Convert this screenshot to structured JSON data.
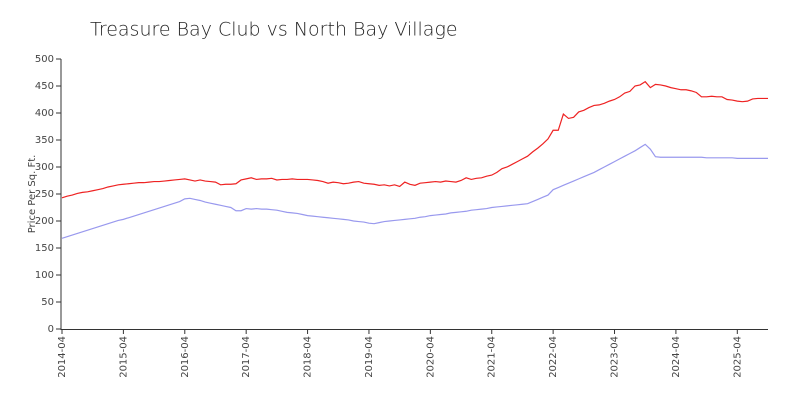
{
  "chart_data": {
    "type": "line",
    "title": "Treasure Bay Club vs North Bay Village",
    "y_label": "Price Per Sq. Ft.",
    "x": [
      "2014-04",
      "2014-05",
      "2014-06",
      "2014-07",
      "2014-08",
      "2014-09",
      "2014-10",
      "2014-11",
      "2014-12",
      "2015-01",
      "2015-02",
      "2015-03",
      "2015-04",
      "2015-05",
      "2015-06",
      "2015-07",
      "2015-08",
      "2015-09",
      "2015-10",
      "2015-11",
      "2015-12",
      "2016-01",
      "2016-02",
      "2016-03",
      "2016-04",
      "2016-05",
      "2016-06",
      "2016-07",
      "2016-08",
      "2016-09",
      "2016-10",
      "2016-11",
      "2016-12",
      "2017-01",
      "2017-02",
      "2017-03",
      "2017-04",
      "2017-05",
      "2017-06",
      "2017-07",
      "2017-08",
      "2017-09",
      "2017-10",
      "2017-11",
      "2017-12",
      "2018-01",
      "2018-02",
      "2018-03",
      "2018-04",
      "2018-05",
      "2018-06",
      "2018-07",
      "2018-08",
      "2018-09",
      "2018-10",
      "2018-11",
      "2018-12",
      "2019-01",
      "2019-02",
      "2019-03",
      "2019-04",
      "2019-05",
      "2019-06",
      "2019-07",
      "2019-08",
      "2019-09",
      "2019-10",
      "2019-11",
      "2019-12",
      "2020-01",
      "2020-02",
      "2020-03",
      "2020-04",
      "2020-05",
      "2020-06",
      "2020-07",
      "2020-08",
      "2020-09",
      "2020-10",
      "2020-11",
      "2020-12",
      "2021-01",
      "2021-02",
      "2021-03",
      "2021-04",
      "2021-05",
      "2021-06",
      "2021-07",
      "2021-08",
      "2021-09",
      "2021-10",
      "2021-11",
      "2021-12",
      "2022-01",
      "2022-02",
      "2022-03",
      "2022-04",
      "2022-05",
      "2022-06",
      "2022-07",
      "2022-08",
      "2022-09",
      "2022-10",
      "2022-11",
      "2022-12",
      "2023-01",
      "2023-02",
      "2023-03",
      "2023-04",
      "2023-05",
      "2023-06",
      "2023-07",
      "2023-08",
      "2023-09",
      "2023-10",
      "2023-11",
      "2023-12",
      "2024-01",
      "2024-02",
      "2024-03",
      "2024-04",
      "2024-05",
      "2024-06",
      "2024-07",
      "2024-08",
      "2024-09",
      "2024-10",
      "2024-11",
      "2024-12",
      "2025-01",
      "2025-02",
      "2025-03",
      "2025-04",
      "2025-05",
      "2025-06",
      "2025-07",
      "2025-08",
      "2025-09",
      "2025-10"
    ],
    "series": [
      {
        "color": "#ee2222",
        "values": [
          243,
          246,
          248,
          251,
          253,
          254,
          256,
          258,
          260,
          263,
          265,
          267,
          268,
          269,
          270,
          271,
          271,
          272,
          273,
          273,
          274,
          275,
          276,
          277,
          278,
          276,
          274,
          276,
          274,
          273,
          272,
          267,
          268,
          268,
          269,
          276,
          278,
          280,
          277,
          278,
          278,
          279,
          276,
          277,
          277,
          278,
          277,
          277,
          277,
          276,
          275,
          273,
          270,
          272,
          271,
          269,
          270,
          272,
          273,
          270,
          269,
          268,
          266,
          267,
          265,
          267,
          264,
          272,
          268,
          266,
          270,
          271,
          272,
          273,
          272,
          274,
          273,
          272,
          275,
          280,
          277,
          279,
          280,
          283,
          285,
          290,
          297,
          300,
          305,
          310,
          315,
          320,
          328,
          335,
          343,
          352,
          368,
          368,
          398,
          390,
          392,
          402,
          405,
          410,
          414,
          415,
          418,
          422,
          425,
          430,
          437,
          440,
          450,
          452,
          458,
          447,
          453,
          452,
          450,
          447,
          445,
          443,
          443,
          441,
          438,
          430,
          430,
          431,
          430,
          430,
          425,
          424,
          422,
          421,
          422,
          426,
          427,
          427,
          427
        ]
      },
      {
        "color": "#9999ee",
        "values": [
          168,
          171,
          174,
          177,
          180,
          183,
          186,
          189,
          192,
          195,
          198,
          201,
          203,
          206,
          209,
          212,
          215,
          218,
          221,
          224,
          227,
          230,
          233,
          236,
          241,
          242,
          240,
          238,
          235,
          233,
          231,
          229,
          227,
          225,
          219,
          219,
          223,
          222,
          223,
          222,
          222,
          221,
          220,
          218,
          216,
          215,
          214,
          212,
          210,
          209,
          208,
          207,
          206,
          205,
          204,
          203,
          202,
          200,
          199,
          198,
          196,
          195,
          197,
          199,
          200,
          201,
          202,
          203,
          204,
          205,
          207,
          208,
          210,
          211,
          212,
          213,
          215,
          216,
          217,
          218,
          220,
          221,
          222,
          223,
          225,
          226,
          227,
          228,
          229,
          230,
          231,
          232,
          236,
          240,
          244,
          248,
          258,
          262,
          266,
          270,
          274,
          278,
          282,
          286,
          290,
          295,
          300,
          305,
          310,
          315,
          320,
          325,
          330,
          336,
          342,
          333,
          319,
          318,
          318,
          318,
          318,
          318,
          318,
          318,
          318,
          318,
          317,
          317,
          317,
          317,
          317,
          317,
          316,
          316,
          316,
          316,
          316,
          316,
          316
        ]
      }
    ],
    "xlim": [
      "2014-04",
      "2025-10"
    ],
    "xticks": [
      "2014-04",
      "2015-04",
      "2016-04",
      "2017-04",
      "2018-04",
      "2019-04",
      "2020-04",
      "2021-04",
      "2022-04",
      "2023-04",
      "2024-04",
      "2025-04"
    ],
    "ylim": [
      0,
      500
    ],
    "yticks": [
      0,
      50,
      100,
      150,
      200,
      250,
      300,
      350,
      400,
      450,
      500
    ]
  }
}
